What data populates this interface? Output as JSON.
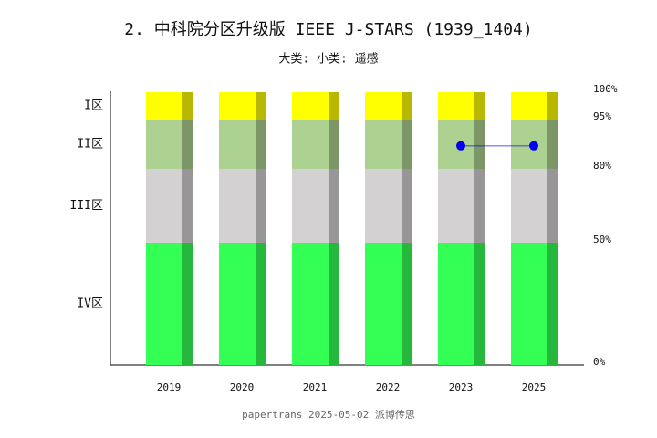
{
  "chart_data": {
    "type": "stacked-bar",
    "title": "2. 中科院分区升级版 IEEE J-STARS (1939_1404)",
    "subtitle": "大类:  小类: 遥感",
    "footer": "papertrans 2025-05-02 派博传思",
    "categories": [
      "2019",
      "2020",
      "2021",
      "2022",
      "2023",
      "2025"
    ],
    "series": [
      {
        "name": "IV区",
        "color": "#33ff55",
        "values": [
          50,
          50,
          50,
          50,
          50,
          50
        ]
      },
      {
        "name": "III区",
        "color": "#d3d1d1",
        "values": [
          30,
          30,
          30,
          30,
          30,
          30
        ]
      },
      {
        "name": "II区",
        "color": "#acd190",
        "values": [
          15,
          15,
          15,
          15,
          15,
          15
        ]
      },
      {
        "name": "I区",
        "color": "#ffff00",
        "values": [
          5,
          5,
          5,
          5,
          5,
          5
        ]
      }
    ],
    "line": {
      "type": "line",
      "color": "#0000ee",
      "values": [
        null,
        null,
        null,
        null,
        87,
        87
      ]
    },
    "ylim": [
      0,
      100
    ],
    "yticks": [
      {
        "value": 0,
        "label": "0%"
      },
      {
        "value": 50,
        "label": "50%"
      },
      {
        "value": 80,
        "label": "80%"
      },
      {
        "value": 95,
        "label": "95%"
      },
      {
        "value": 100,
        "label": "100%"
      }
    ]
  }
}
